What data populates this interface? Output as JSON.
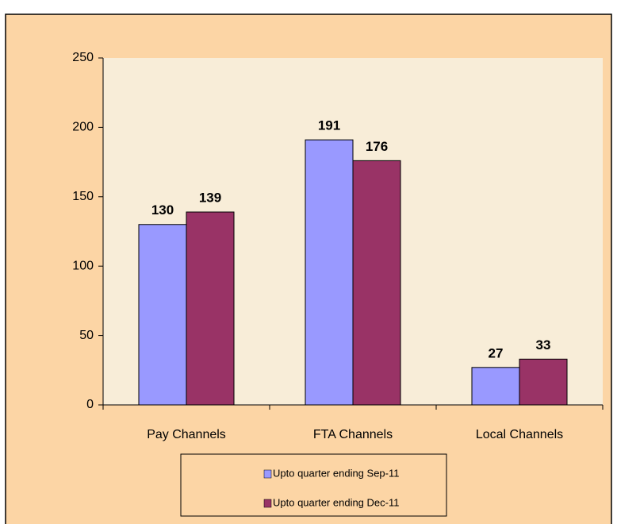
{
  "chart_data": {
    "type": "bar",
    "categories": [
      "Pay Channels",
      "FTA Channels",
      "Local Channels"
    ],
    "series": [
      {
        "name": "Upto quarter ending Sep-11",
        "color": "#9999ff",
        "values": [
          130,
          191,
          27
        ]
      },
      {
        "name": "Upto quarter ending Dec-11",
        "color": "#993366",
        "values": [
          139,
          176,
          33
        ]
      }
    ],
    "ylim": [
      0,
      250
    ],
    "yticks": [
      0,
      50,
      100,
      150,
      200,
      250
    ],
    "legend": "bottom"
  }
}
